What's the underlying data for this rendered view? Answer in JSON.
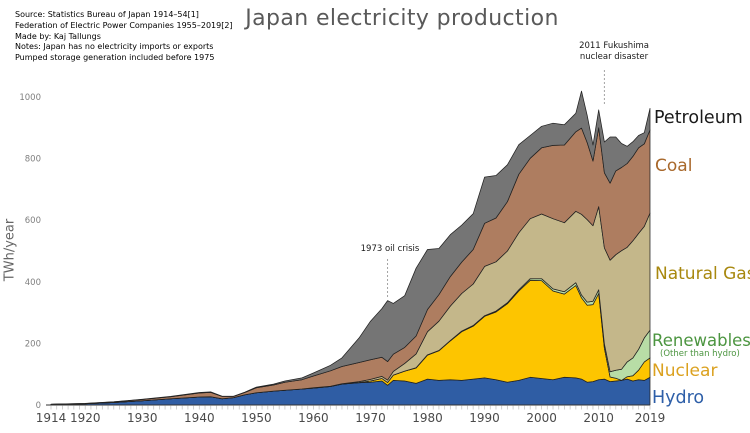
{
  "title": "Japan electricity production",
  "source": {
    "lines": [
      "Source: Statistics Bureau of Japan 1914–54[1]",
      "Federation of Electric Power Companies 1955–2019[2]",
      "Made by: Kaj Tallungs",
      "Notes: Japan has no electricity imports or exports",
      "Pumped storage generation included before 1975"
    ]
  },
  "annotations": {
    "oil_crisis": {
      "text": "1973 oil crisis",
      "year": 1973
    },
    "fukushima": {
      "line1": "2011 Fukushima",
      "line2": "nuclear disaster",
      "year": 2011
    }
  },
  "chart_data": {
    "type": "area",
    "stacked": true,
    "title": "Japan electricity production",
    "xlabel": "",
    "ylabel": "TWh/year",
    "unit": "TWh/year",
    "xlim": [
      1914,
      2019
    ],
    "ylim": [
      0,
      1050
    ],
    "grid": false,
    "legend_position": "right",
    "x_ticks": [
      1914,
      1920,
      1930,
      1940,
      1950,
      1960,
      1970,
      1980,
      1990,
      2000,
      2010,
      2019
    ],
    "y_ticks": [
      0,
      200,
      400,
      600,
      800,
      1000
    ],
    "x": [
      1914,
      1920,
      1925,
      1930,
      1935,
      1940,
      1942,
      1944,
      1946,
      1948,
      1950,
      1953,
      1955,
      1958,
      1960,
      1963,
      1965,
      1968,
      1970,
      1972,
      1973,
      1974,
      1976,
      1978,
      1980,
      1982,
      1984,
      1986,
      1988,
      1990,
      1992,
      1994,
      1996,
      1998,
      2000,
      2002,
      2004,
      2006,
      2007,
      2008,
      2009,
      2010,
      2011,
      2012,
      2013,
      2014,
      2015,
      2016,
      2017,
      2018,
      2019
    ],
    "series": [
      {
        "name": "hydro",
        "label": "Hydro",
        "color": "#2f5da4",
        "label_color": "#2e5fa8",
        "values": [
          2,
          4,
          8,
          14,
          20,
          26,
          27,
          20,
          24,
          33,
          40,
          45,
          48,
          52,
          55,
          60,
          68,
          72,
          74,
          78,
          64,
          80,
          78,
          70,
          84,
          80,
          82,
          80,
          84,
          88,
          82,
          74,
          80,
          90,
          86,
          82,
          90,
          88,
          84,
          74,
          76,
          82,
          84,
          76,
          78,
          80,
          84,
          78,
          82,
          80,
          90
        ]
      },
      {
        "name": "nuclear",
        "label": "Nuclear",
        "color": "#fdc500",
        "label_color": "#dba11f",
        "values": [
          0,
          0,
          0,
          0,
          0,
          0,
          0,
          0,
          0,
          0,
          0,
          0,
          0,
          0,
          0,
          0,
          0,
          1,
          4,
          8,
          9,
          17,
          32,
          50,
          78,
          96,
          126,
          158,
          172,
          200,
          220,
          255,
          290,
          315,
          318,
          288,
          270,
          300,
          264,
          250,
          250,
          280,
          100,
          15,
          9,
          0,
          8,
          17,
          31,
          60,
          63
        ]
      },
      {
        "name": "renewables",
        "label": "Renewables",
        "sublabel": "(Other than hydro)",
        "color": "#b8dda6",
        "label_color": "#4c9540",
        "values": [
          0,
          0,
          0,
          0,
          0,
          0,
          0,
          0,
          0,
          0,
          0,
          0,
          0,
          0,
          0,
          0,
          0,
          0,
          0,
          0,
          0,
          0,
          0,
          1,
          1,
          1,
          1,
          2,
          2,
          2,
          3,
          3,
          4,
          5,
          6,
          7,
          8,
          9,
          9,
          10,
          11,
          12,
          14,
          17,
          26,
          36,
          48,
          58,
          68,
          78,
          90
        ]
      },
      {
        "name": "natural-gas",
        "label": "Natural Gas",
        "color": "#c4b78a",
        "label_color": "#a8880f",
        "values": [
          0,
          0,
          0,
          0,
          0,
          0,
          0,
          0,
          0,
          0,
          0,
          0,
          0,
          0,
          1,
          1,
          1,
          3,
          5,
          7,
          8,
          12,
          25,
          45,
          75,
          95,
          112,
          122,
          135,
          160,
          160,
          168,
          185,
          195,
          210,
          228,
          224,
          232,
          262,
          268,
          245,
          270,
          312,
          362,
          375,
          385,
          372,
          380,
          376,
          362,
          380
        ]
      },
      {
        "name": "coal",
        "label": "Coal",
        "color": "#ae7d60",
        "label_color": "#a8682b",
        "values": [
          0.3,
          1,
          2,
          4,
          7,
          13,
          14,
          8,
          4,
          8,
          16,
          20,
          26,
          30,
          38,
          50,
          56,
          62,
          64,
          62,
          60,
          56,
          52,
          58,
          72,
          86,
          96,
          102,
          112,
          140,
          142,
          160,
          190,
          196,
          215,
          238,
          252,
          258,
          280,
          250,
          210,
          256,
          244,
          250,
          272,
          270,
          272,
          274,
          278,
          268,
          270
        ]
      },
      {
        "name": "petroleum",
        "label": "Petroleum",
        "color": "#757575",
        "label_color": "#1a1a1a",
        "values": [
          0,
          0.1,
          0.3,
          0.5,
          1,
          1.5,
          1.5,
          0.5,
          0.5,
          1,
          2,
          3,
          4,
          6,
          10,
          18,
          28,
          80,
          125,
          158,
          198,
          165,
          168,
          220,
          195,
          150,
          136,
          120,
          116,
          150,
          138,
          120,
          96,
          74,
          70,
          72,
          66,
          60,
          120,
          88,
          52,
          58,
          100,
          150,
          110,
          78,
          56,
          48,
          40,
          36,
          70
        ]
      }
    ]
  }
}
